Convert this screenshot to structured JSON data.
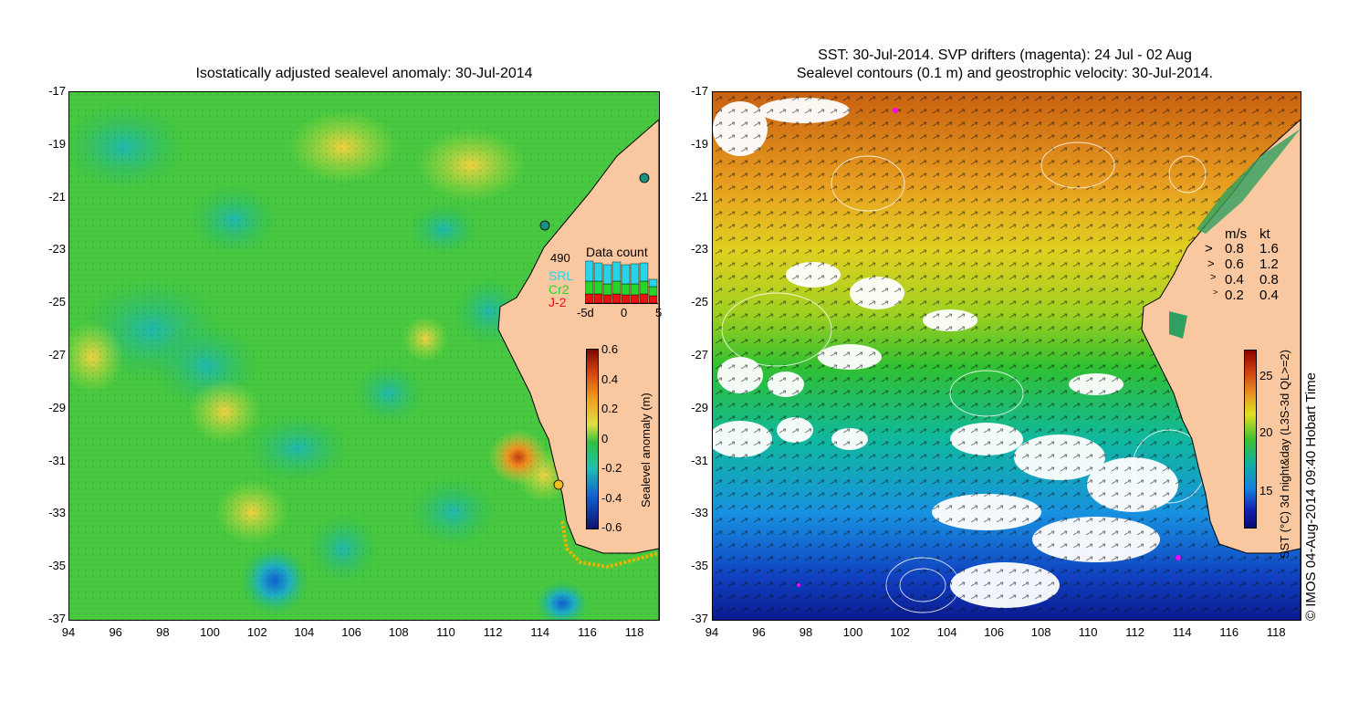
{
  "left": {
    "title": "Isostatically adjusted sealevel anomaly: 30-Jul-2014",
    "y_ticks": [
      "-17",
      "-19",
      "-21",
      "-23",
      "-25",
      "-27",
      "-29",
      "-31",
      "-33",
      "-35",
      "-37"
    ],
    "x_ticks": [
      "94",
      "96",
      "98",
      "100",
      "102",
      "104",
      "106",
      "108",
      "110",
      "112",
      "114",
      "116",
      "118"
    ],
    "data_count": {
      "label": "Data count",
      "max": "490",
      "series": [
        "SRL",
        "Cr2",
        "J-2"
      ],
      "series_colors": [
        "#27d4e8",
        "#27d42a",
        "#e81212"
      ],
      "axis": [
        "-5d",
        "0",
        "5"
      ]
    },
    "colorbar": {
      "label": "Sealevel anomaly (m)",
      "ticks": [
        "0.6",
        "0.4",
        "0.2",
        "0",
        "-0.2",
        "-0.4",
        "-0.6"
      ]
    }
  },
  "right": {
    "title_line1": "SST: 30-Jul-2014. SVP drifters (magenta): 24 Jul - 02 Aug",
    "title_line2": "Sealevel contours (0.1 m) and geostrophic velocity: 30-Jul-2014.",
    "y_ticks": [
      "-17",
      "-19",
      "-21",
      "-23",
      "-25",
      "-27",
      "-29",
      "-31",
      "-33",
      "-35",
      "-37"
    ],
    "x_ticks": [
      "94",
      "96",
      "98",
      "100",
      "102",
      "104",
      "106",
      "108",
      "110",
      "112",
      "114",
      "116",
      "118"
    ],
    "velocity_legend": {
      "header_ms": "m/s",
      "header_kt": "kt",
      "rows": [
        {
          "ms": "0.8",
          "kt": "1.6"
        },
        {
          "ms": "0.6",
          "kt": "1.2"
        },
        {
          "ms": "0.4",
          "kt": "0.8"
        },
        {
          "ms": "0.2",
          "kt": "0.4"
        }
      ]
    },
    "colorbar": {
      "label": "SST (°C) 3d night&day (L3S-3d QL>=2)",
      "ticks": [
        "25",
        "20",
        "15"
      ]
    }
  },
  "credit": "© IMOS 04-Aug-2014 09:40 Hobart Time",
  "colors": {
    "land": "#f9c8a0",
    "ocean_green": "#3fc83a",
    "sst_warm": "#d07a18",
    "sst_cool": "#1a4fc8"
  }
}
